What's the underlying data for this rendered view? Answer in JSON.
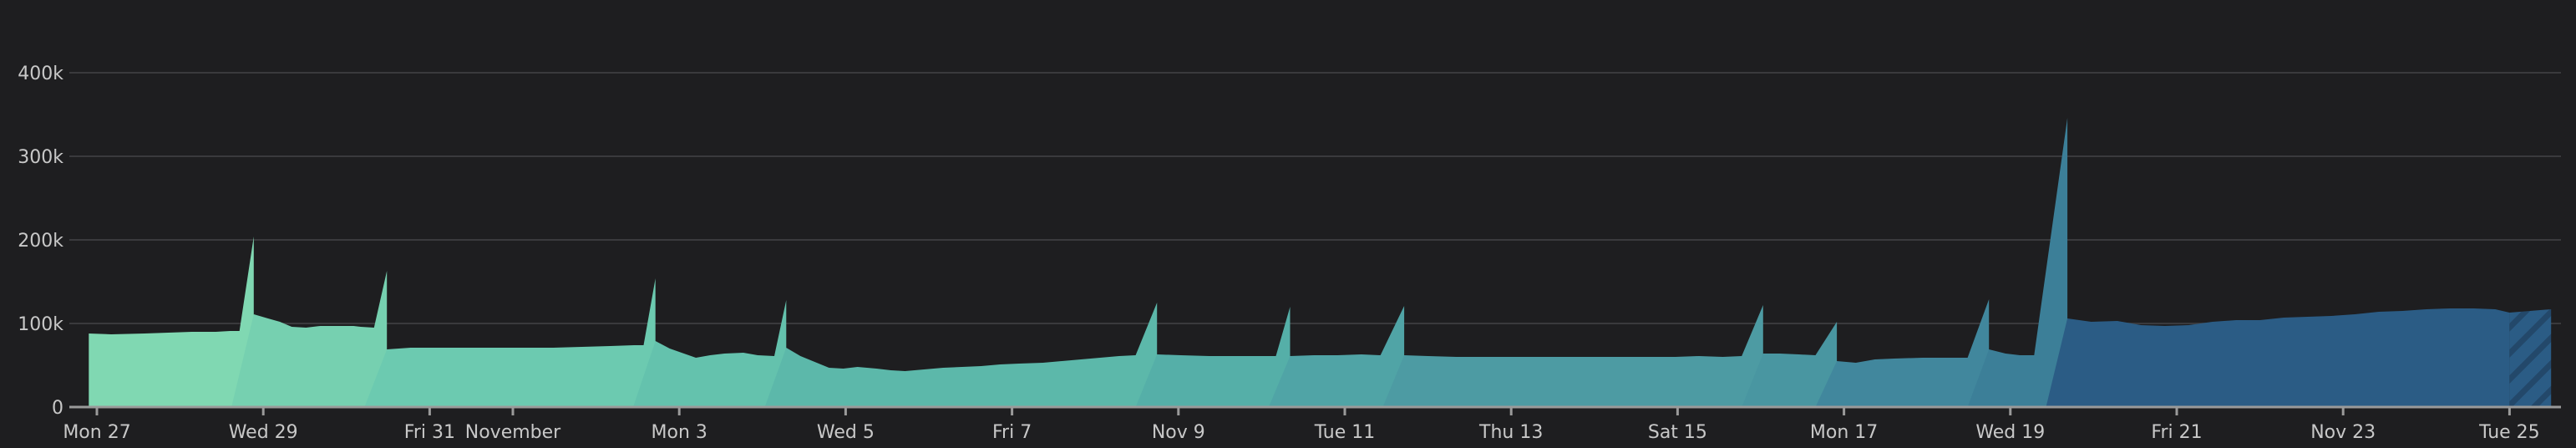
{
  "chart_data": {
    "type": "area",
    "title": "",
    "xlabel": "",
    "ylabel": "",
    "ylim": [
      0,
      400000
    ],
    "grid": true,
    "legend": null,
    "y_ticks": [
      {
        "value": 0,
        "label": "0"
      },
      {
        "value": 100000,
        "label": "100k"
      },
      {
        "value": 200000,
        "label": "200k"
      },
      {
        "value": 300000,
        "label": "300k"
      },
      {
        "value": 400000,
        "label": "400k"
      }
    ],
    "x_ticks": [
      {
        "day": 0,
        "label": "Mon 27"
      },
      {
        "day": 2,
        "label": "Wed 29"
      },
      {
        "day": 4,
        "label": "Fri 31"
      },
      {
        "day": 5,
        "label": "November"
      },
      {
        "day": 7,
        "label": "Mon 3"
      },
      {
        "day": 9,
        "label": "Wed 5"
      },
      {
        "day": 11,
        "label": "Fri 7"
      },
      {
        "day": 13,
        "label": "Nov 9"
      },
      {
        "day": 15,
        "label": "Tue 11"
      },
      {
        "day": 17,
        "label": "Thu 13"
      },
      {
        "day": 19,
        "label": "Sat 15"
      },
      {
        "day": 21,
        "label": "Mon 17"
      },
      {
        "day": 23,
        "label": "Wed 19"
      },
      {
        "day": 25,
        "label": "Fri 21"
      },
      {
        "day": 27,
        "label": "Nov 23"
      },
      {
        "day": 29,
        "label": "Tue 25"
      }
    ],
    "x_range_days": [
      -0.17,
      29.63
    ],
    "incomplete_from_day": 29.5,
    "series": [
      {
        "name": "segment-1",
        "color": "#80d8b2",
        "points": [
          [
            -0.17,
            88000
          ],
          [
            0.3,
            87000
          ],
          [
            1,
            88000
          ],
          [
            1.5,
            89000
          ],
          [
            2,
            90000
          ],
          [
            2.5,
            90000
          ],
          [
            2.8,
            91000
          ],
          [
            3.0,
            91000
          ],
          [
            3.3,
            204000
          ]
        ]
      },
      {
        "name": "segment-2",
        "color": "#76d0b0",
        "points": [
          [
            2.83,
            0
          ],
          [
            3.3,
            111000
          ],
          [
            3.6,
            106000
          ],
          [
            3.85,
            102000
          ],
          [
            4.1,
            96000
          ],
          [
            4.4,
            95000
          ],
          [
            4.7,
            97000
          ],
          [
            5.0,
            97000
          ],
          [
            5.4,
            97000
          ],
          [
            5.55,
            96000
          ],
          [
            5.83,
            95000
          ],
          [
            6.1,
            163000
          ]
        ]
      },
      {
        "name": "segment-3",
        "color": "#6ccab0",
        "points": [
          [
            5.63,
            0
          ],
          [
            6.1,
            69000
          ],
          [
            6.6,
            71000
          ],
          [
            7.2,
            71000
          ],
          [
            7.8,
            71000
          ],
          [
            8.4,
            71000
          ],
          [
            9.0,
            71000
          ],
          [
            9.6,
            71000
          ],
          [
            10.2,
            72000
          ],
          [
            10.8,
            73000
          ],
          [
            11.3,
            74000
          ],
          [
            11.5,
            74000
          ],
          [
            11.75,
            154000
          ]
        ]
      },
      {
        "name": "segment-4",
        "color": "#64c2ad",
        "points": [
          [
            11.28,
            0
          ],
          [
            11.75,
            79000
          ],
          [
            12.05,
            70000
          ],
          [
            12.3,
            65000
          ],
          [
            12.6,
            59000
          ],
          [
            12.9,
            62000
          ],
          [
            13.2,
            64000
          ],
          [
            13.6,
            65000
          ],
          [
            13.9,
            62000
          ],
          [
            14.25,
            61000
          ],
          [
            14.5,
            128000
          ]
        ]
      },
      {
        "name": "segment-5",
        "color": "#5cb8aa",
        "points": [
          [
            14.05,
            0
          ],
          [
            14.5,
            71000
          ],
          [
            14.8,
            61000
          ],
          [
            15.1,
            54000
          ],
          [
            15.4,
            47000
          ],
          [
            15.7,
            46000
          ],
          [
            16.0,
            48000
          ],
          [
            16.4,
            46000
          ],
          [
            16.7,
            44000
          ],
          [
            17.0,
            43000
          ],
          [
            17.4,
            45000
          ],
          [
            17.8,
            47000
          ],
          [
            18.2,
            48000
          ],
          [
            18.6,
            49000
          ],
          [
            19.0,
            51000
          ],
          [
            19.4,
            52000
          ],
          [
            19.9,
            53000
          ],
          [
            20.3,
            55000
          ],
          [
            20.7,
            57000
          ],
          [
            21.1,
            59000
          ],
          [
            21.5,
            61000
          ],
          [
            21.85,
            62000
          ],
          [
            22.3,
            125000
          ]
        ]
      },
      {
        "name": "segment-6",
        "color": "#55afa8",
        "points": [
          [
            21.85,
            0
          ],
          [
            22.3,
            63000
          ],
          [
            22.8,
            62000
          ],
          [
            23.4,
            61000
          ],
          [
            23.9,
            61000
          ],
          [
            24.4,
            61000
          ],
          [
            24.8,
            61000
          ],
          [
            25.1,
            120000
          ]
        ]
      },
      {
        "name": "segment-7",
        "color": "#50a4a6",
        "points": [
          [
            24.65,
            0
          ],
          [
            25.1,
            61000
          ],
          [
            25.6,
            62000
          ],
          [
            26.1,
            62000
          ],
          [
            26.6,
            63000
          ],
          [
            27.0,
            62000
          ],
          [
            27.5,
            121000
          ]
        ]
      },
      {
        "name": "segment-8",
        "color": "#4d9ba3",
        "points": [
          [
            27.05,
            0
          ],
          [
            27.5,
            62000
          ],
          [
            28.0,
            61000
          ],
          [
            28.6,
            60000
          ],
          [
            29.2,
            60000
          ],
          [
            29.8,
            60000
          ],
          [
            30.4,
            60000
          ],
          [
            31.0,
            60000
          ],
          [
            31.6,
            60000
          ],
          [
            32.2,
            60000
          ],
          [
            32.7,
            60000
          ],
          [
            33.2,
            60000
          ],
          [
            33.7,
            61000
          ],
          [
            34.2,
            60000
          ],
          [
            34.6,
            61000
          ],
          [
            35.05,
            122000
          ]
        ]
      },
      {
        "name": "segment-9",
        "color": "#4996a1",
        "points": [
          [
            34.6,
            0
          ],
          [
            35.05,
            64000
          ],
          [
            35.4,
            64000
          ],
          [
            35.8,
            63000
          ],
          [
            36.15,
            62000
          ],
          [
            36.6,
            102000
          ]
        ]
      },
      {
        "name": "segment-10",
        "color": "#41879d",
        "points": [
          [
            36.15,
            0
          ],
          [
            36.6,
            55000
          ],
          [
            37.0,
            53000
          ],
          [
            37.4,
            57000
          ],
          [
            37.8,
            58000
          ],
          [
            38.4,
            59000
          ],
          [
            38.9,
            59000
          ],
          [
            39.35,
            59000
          ],
          [
            39.8,
            129000
          ]
        ]
      },
      {
        "name": "segment-11",
        "color": "#3c7f98",
        "points": [
          [
            39.35,
            0
          ],
          [
            39.8,
            69000
          ],
          [
            40.15,
            64000
          ],
          [
            40.45,
            62000
          ],
          [
            40.75,
            62000
          ],
          [
            41.45,
            346000
          ]
        ]
      },
      {
        "name": "segment-12",
        "color": "#2b5c85",
        "points": [
          [
            41.0,
            0
          ],
          [
            41.45,
            106000
          ],
          [
            41.95,
            102000
          ],
          [
            42.5,
            103000
          ],
          [
            43.0,
            98000
          ],
          [
            43.5,
            97000
          ],
          [
            44.0,
            98000
          ],
          [
            44.5,
            102000
          ],
          [
            45.0,
            104000
          ],
          [
            45.5,
            104000
          ],
          [
            46.0,
            107000
          ],
          [
            46.5,
            108000
          ],
          [
            47.0,
            109000
          ],
          [
            47.5,
            111000
          ],
          [
            48.0,
            114000
          ],
          [
            48.5,
            115000
          ],
          [
            49.0,
            117000
          ],
          [
            49.5,
            118000
          ],
          [
            50.0,
            118000
          ],
          [
            50.45,
            117000
          ],
          [
            50.75,
            113000
          ]
        ]
      }
    ]
  }
}
